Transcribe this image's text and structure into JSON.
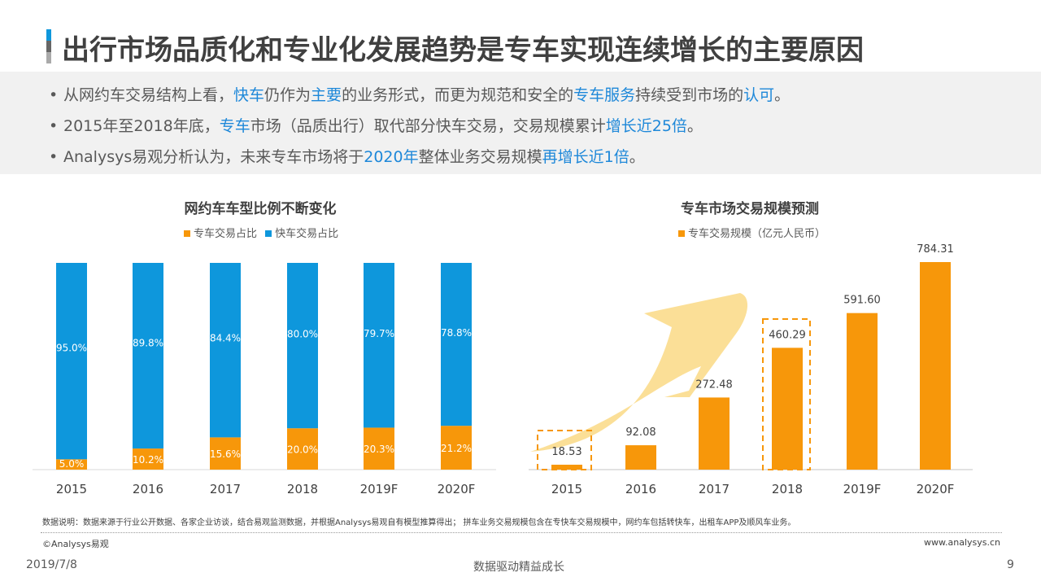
{
  "header": {
    "title": "出行市场品质化和专业化发展趋势是专车实现连续增长的主要原因"
  },
  "bullets": [
    [
      {
        "t": "从网约车交易结构上看，"
      },
      {
        "t": "快车",
        "hl": true
      },
      {
        "t": "仍作为"
      },
      {
        "t": "主要",
        "hl": true
      },
      {
        "t": "的业务形式，而更为规范和安全的"
      },
      {
        "t": "专车服务",
        "hl": true
      },
      {
        "t": "持续受到市场的"
      },
      {
        "t": "认可",
        "hl": true
      },
      {
        "t": "。"
      }
    ],
    [
      {
        "t": "2015年至2018年底，"
      },
      {
        "t": "专车",
        "hl": true
      },
      {
        "t": "市场（品质出行）取代部分快车交易，交易规模累计"
      },
      {
        "t": "增长近25倍",
        "hl": true
      },
      {
        "t": "。"
      }
    ],
    [
      {
        "t": "Analysys易观分析认为，未来专车市场将于"
      },
      {
        "t": "2020年",
        "hl": true
      },
      {
        "t": "整体业务交易规模"
      },
      {
        "t": "再增长近1倍",
        "hl": true
      },
      {
        "t": "。"
      }
    ]
  ],
  "colors": {
    "orange": "#f7970a",
    "blue": "#0e97dc",
    "highlight": "#1e88d9",
    "arrow": "#fbdc8c"
  },
  "chart_data": [
    {
      "type": "bar",
      "stacked": true,
      "title": "网约车车型比例不断变化",
      "categories": [
        "2015",
        "2016",
        "2017",
        "2018",
        "2019F",
        "2020F"
      ],
      "series": [
        {
          "name": "专车交易占比",
          "color": "#f7970a",
          "values": [
            5.0,
            10.2,
            15.6,
            20.0,
            20.3,
            21.2
          ],
          "labels": [
            "5.0%",
            "10.2%",
            "15.6%",
            "20.0%",
            "20.3%",
            "21.2%"
          ]
        },
        {
          "name": "快车交易占比",
          "color": "#0e97dc",
          "values": [
            95.0,
            89.8,
            84.4,
            80.0,
            79.7,
            78.8
          ],
          "labels": [
            "95.0%",
            "89.8%",
            "84.4%",
            "80.0%",
            "79.7%",
            "78.8%"
          ]
        }
      ],
      "ylim": [
        0,
        100
      ],
      "legend": "top"
    },
    {
      "type": "bar",
      "title": "专车市场交易规模预测",
      "categories": [
        "2015",
        "2016",
        "2017",
        "2018",
        "2019F",
        "2020F"
      ],
      "series": [
        {
          "name": "专车交易规模（亿元人民币）",
          "color": "#f7970a",
          "values": [
            18.53,
            92.08,
            272.48,
            460.29,
            591.6,
            784.31
          ],
          "labels": [
            "18.53",
            "92.08",
            "272.48",
            "460.29",
            "591.60",
            "784.31"
          ]
        }
      ],
      "highlighted": [
        "2015",
        "2018"
      ],
      "legend": "top"
    }
  ],
  "footer": {
    "note": "数据说明：数据来源于行业公开数据、各家企业访谈，结合易观监测数据，并根据Analysys易观自有模型推算得出；  拼车业务交易规模包含在专快车交易规模中，网约车包括转快车，出租车APP及顺风车业务。",
    "copyright": "©Analysys易观",
    "website": "www.analysys.cn",
    "date": "2019/7/8",
    "slogan": "数据驱动精益成长",
    "page": "9"
  }
}
